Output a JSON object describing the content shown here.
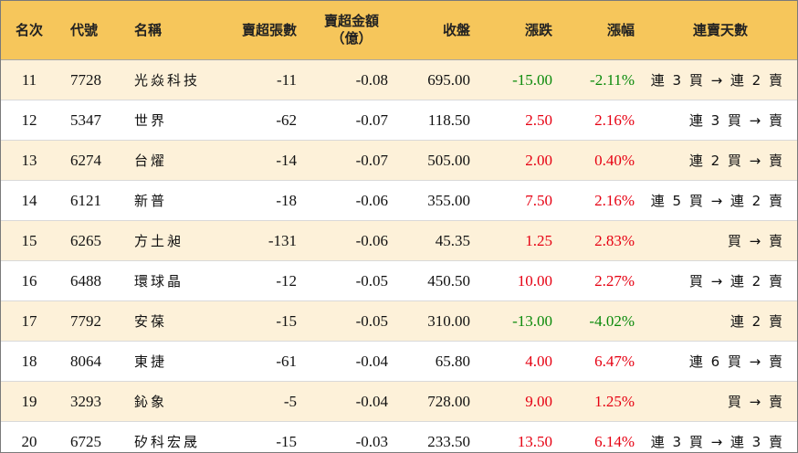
{
  "headers": {
    "rank": "名次",
    "code": "代號",
    "name": "名稱",
    "net_sell_lots": "賣超張數",
    "net_sell_amount_line1": "賣超金額",
    "net_sell_amount_line2": "（億）",
    "close": "收盤",
    "change": "漲跌",
    "change_pct": "漲幅",
    "streak": "連賣天數"
  },
  "colors": {
    "header_bg": "#f6c65b",
    "odd_row_bg": "#fdf1d9",
    "up": "#e60012",
    "down": "#0a8a0a"
  },
  "rows": [
    {
      "rank": "11",
      "code": "7728",
      "name": "光焱科技",
      "lots": "-11",
      "amount": "-0.08",
      "close": "695.00",
      "change": "-15.00",
      "pct": "-2.11%",
      "dir": "down",
      "streak": "連 3 買 → 連 2 賣"
    },
    {
      "rank": "12",
      "code": "5347",
      "name": "世界",
      "lots": "-62",
      "amount": "-0.07",
      "close": "118.50",
      "change": "2.50",
      "pct": "2.16%",
      "dir": "up",
      "streak": "連 3 買 → 賣"
    },
    {
      "rank": "13",
      "code": "6274",
      "name": "台燿",
      "lots": "-14",
      "amount": "-0.07",
      "close": "505.00",
      "change": "2.00",
      "pct": "0.40%",
      "dir": "up",
      "streak": "連 2 買 → 賣"
    },
    {
      "rank": "14",
      "code": "6121",
      "name": "新普",
      "lots": "-18",
      "amount": "-0.06",
      "close": "355.00",
      "change": "7.50",
      "pct": "2.16%",
      "dir": "up",
      "streak": "連 5 買 → 連 2 賣"
    },
    {
      "rank": "15",
      "code": "6265",
      "name": "方土昶",
      "lots": "-131",
      "amount": "-0.06",
      "close": "45.35",
      "change": "1.25",
      "pct": "2.83%",
      "dir": "up",
      "streak": "買 → 賣"
    },
    {
      "rank": "16",
      "code": "6488",
      "name": "環球晶",
      "lots": "-12",
      "amount": "-0.05",
      "close": "450.50",
      "change": "10.00",
      "pct": "2.27%",
      "dir": "up",
      "streak": "買 → 連 2 賣"
    },
    {
      "rank": "17",
      "code": "7792",
      "name": "安葆",
      "lots": "-15",
      "amount": "-0.05",
      "close": "310.00",
      "change": "-13.00",
      "pct": "-4.02%",
      "dir": "down",
      "streak": "連 2 賣"
    },
    {
      "rank": "18",
      "code": "8064",
      "name": "東捷",
      "lots": "-61",
      "amount": "-0.04",
      "close": "65.80",
      "change": "4.00",
      "pct": "6.47%",
      "dir": "up",
      "streak": "連 6 買 → 賣"
    },
    {
      "rank": "19",
      "code": "3293",
      "name": "鈊象",
      "lots": "-5",
      "amount": "-0.04",
      "close": "728.00",
      "change": "9.00",
      "pct": "1.25%",
      "dir": "up",
      "streak": "買 → 賣"
    },
    {
      "rank": "20",
      "code": "6725",
      "name": "矽科宏晟",
      "lots": "-15",
      "amount": "-0.03",
      "close": "233.50",
      "change": "13.50",
      "pct": "6.14%",
      "dir": "up",
      "streak": "連 3 買 → 連 3 賣"
    }
  ]
}
